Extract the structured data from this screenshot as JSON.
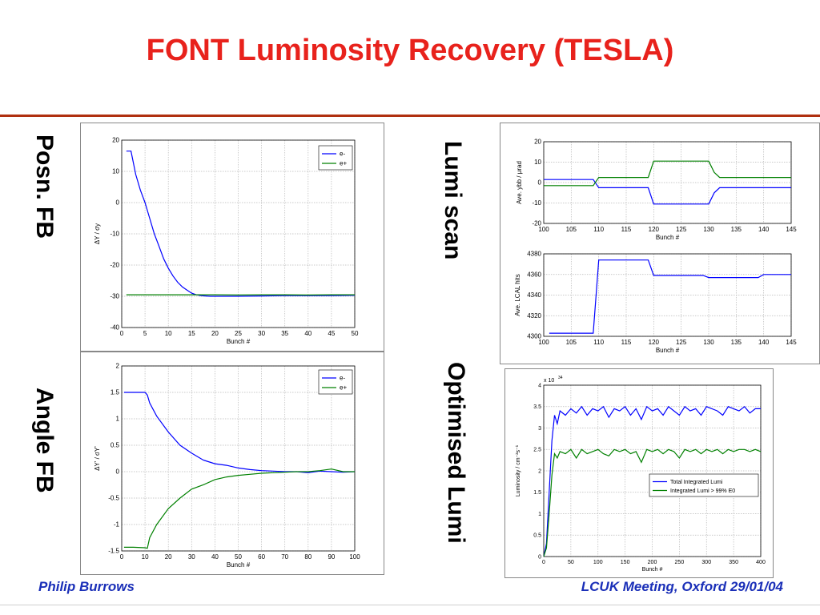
{
  "slide": {
    "title": "FONT Luminosity Recovery (TESLA)",
    "footer_left": "Philip Burrows",
    "footer_right": "LCUK Meeting, Oxford 29/01/04",
    "labels": {
      "posn_fb": "Posn. FB",
      "angle_fb": "Angle FB",
      "lumi_scan": "Lumi scan",
      "optimised_lumi": "Optimised Lumi"
    },
    "colors": {
      "title": "#e8221c",
      "footer": "#1a2fb8",
      "series_blue": "#0000ff",
      "series_green": "#008000"
    }
  },
  "chart_data": [
    {
      "id": "posn",
      "type": "line",
      "xlabel": "Bunch #",
      "ylabel": "ΔY / σy",
      "xlim": [
        0,
        50
      ],
      "ylim": [
        -40,
        20
      ],
      "xticks": [
        0,
        5,
        10,
        15,
        20,
        25,
        30,
        35,
        40,
        45,
        50
      ],
      "yticks": [
        20,
        10,
        0,
        -10,
        -20,
        -30,
        -40
      ],
      "grid": true,
      "legend": "top-right",
      "series": [
        {
          "name": "e-",
          "color": "#0000ff",
          "x": [
            1,
            2,
            3,
            4,
            5,
            6,
            7,
            8,
            9,
            10,
            11,
            12,
            13,
            14,
            15,
            16,
            17,
            18,
            19,
            20,
            22,
            25,
            30,
            35,
            40,
            45,
            50
          ],
          "y": [
            16.5,
            16.5,
            9,
            4,
            0,
            -5,
            -10,
            -14,
            -18,
            -21,
            -23.5,
            -25.5,
            -27,
            -28,
            -29,
            -29.5,
            -29.8,
            -29.9,
            -30,
            -30,
            -30,
            -30,
            -29.9,
            -29.8,
            -29.8,
            -29.8,
            -29.7
          ]
        },
        {
          "name": "e+",
          "color": "#008000",
          "x": [
            1,
            5,
            10,
            15,
            20,
            25,
            30,
            35,
            40,
            45,
            50
          ],
          "y": [
            -29.5,
            -29.5,
            -29.5,
            -29.5,
            -29.5,
            -29.6,
            -29.5,
            -29.5,
            -29.6,
            -29.5,
            -29.5
          ]
        }
      ]
    },
    {
      "id": "angle",
      "type": "line",
      "xlabel": "Bunch #",
      "ylabel": "ΔY' / σY'",
      "xlim": [
        0,
        100
      ],
      "ylim": [
        -1.5,
        2
      ],
      "xticks": [
        0,
        10,
        20,
        30,
        40,
        50,
        60,
        70,
        80,
        90,
        100
      ],
      "yticks": [
        2,
        1.5,
        1,
        0.5,
        0,
        -0.5,
        -1,
        -1.5
      ],
      "grid": true,
      "legend": "top-right",
      "series": [
        {
          "name": "e-",
          "color": "#0000ff",
          "x": [
            1,
            5,
            10,
            11,
            12,
            15,
            20,
            25,
            30,
            35,
            40,
            45,
            50,
            55,
            60,
            65,
            70,
            75,
            80,
            85,
            90,
            95,
            100
          ],
          "y": [
            1.5,
            1.5,
            1.5,
            1.45,
            1.3,
            1.05,
            0.75,
            0.5,
            0.35,
            0.22,
            0.15,
            0.12,
            0.07,
            0.04,
            0.02,
            0.01,
            0.0,
            0.0,
            -0.02,
            0.01,
            0.0,
            -0.01,
            0.0
          ]
        },
        {
          "name": "e+",
          "color": "#008000",
          "x": [
            1,
            5,
            10,
            11,
            12,
            15,
            20,
            25,
            30,
            35,
            40,
            45,
            50,
            55,
            60,
            65,
            70,
            75,
            80,
            85,
            90,
            95,
            100
          ],
          "y": [
            -1.43,
            -1.43,
            -1.44,
            -1.45,
            -1.25,
            -1.0,
            -0.7,
            -0.5,
            -0.33,
            -0.25,
            -0.15,
            -0.1,
            -0.07,
            -0.05,
            -0.03,
            -0.02,
            -0.01,
            0.0,
            0.0,
            0.02,
            0.05,
            0.0,
            0.0
          ]
        }
      ]
    },
    {
      "id": "lumiscan_angle",
      "type": "line",
      "xlabel": "Bunch #",
      "ylabel": "Ave. ybb / μrad",
      "xlim": [
        100,
        145
      ],
      "ylim": [
        -20,
        20
      ],
      "xticks": [
        100,
        105,
        110,
        115,
        120,
        125,
        130,
        135,
        140,
        145
      ],
      "yticks": [
        20,
        10,
        0,
        -10,
        -20
      ],
      "grid": true,
      "series": [
        {
          "name": "",
          "color": "#0000ff",
          "x": [
            100,
            109,
            110,
            119,
            120,
            130,
            131,
            132,
            145
          ],
          "y": [
            1.5,
            1.5,
            -2.5,
            -2.5,
            -10.5,
            -10.5,
            -5,
            -2.5,
            -2.5
          ]
        },
        {
          "name": "",
          "color": "#008000",
          "x": [
            100,
            109,
            110,
            119,
            120,
            130,
            131,
            132,
            145
          ],
          "y": [
            -1.5,
            -1.5,
            2.5,
            2.5,
            10.5,
            10.5,
            5,
            2.5,
            2.5
          ]
        }
      ]
    },
    {
      "id": "lumiscan_lcal",
      "type": "line",
      "xlabel": "Bunch #",
      "ylabel": "Ave. LCAL hits",
      "xlim": [
        100,
        145
      ],
      "ylim": [
        4300,
        4380
      ],
      "xticks": [
        100,
        105,
        110,
        115,
        120,
        125,
        130,
        135,
        140,
        145
      ],
      "yticks": [
        4380,
        4360,
        4340,
        4320,
        4300
      ],
      "grid": true,
      "series": [
        {
          "name": "",
          "color": "#0000ff",
          "x": [
            101,
            109,
            110,
            119,
            120,
            129,
            130,
            139,
            140,
            145
          ],
          "y": [
            4303,
            4303,
            4374,
            4374,
            4359,
            4359,
            4357,
            4357,
            4360,
            4360
          ]
        }
      ]
    },
    {
      "id": "optimised",
      "type": "line",
      "xlabel": "Bunch #",
      "ylabel": "Luminosity / cm⁻²s⁻¹",
      "scale_label": "x 10",
      "scale_exponent": "34",
      "xlim": [
        0,
        400
      ],
      "ylim": [
        0,
        4
      ],
      "xticks": [
        0,
        50,
        100,
        150,
        200,
        250,
        300,
        350,
        400
      ],
      "yticks": [
        4,
        3.5,
        3,
        2.5,
        2,
        1.5,
        1,
        0.5,
        0
      ],
      "grid": true,
      "legend": "middle-right",
      "series": [
        {
          "name": "Total Integrated Lumi",
          "color": "#0000ff",
          "x": [
            0,
            5,
            10,
            15,
            20,
            25,
            30,
            40,
            50,
            60,
            70,
            80,
            90,
            100,
            110,
            120,
            130,
            140,
            150,
            160,
            170,
            180,
            190,
            200,
            210,
            220,
            230,
            240,
            250,
            260,
            270,
            280,
            290,
            300,
            310,
            320,
            330,
            340,
            350,
            360,
            370,
            380,
            390,
            400
          ],
          "y": [
            0,
            0.3,
            1.5,
            2.7,
            3.3,
            3.1,
            3.4,
            3.3,
            3.45,
            3.35,
            3.5,
            3.3,
            3.45,
            3.4,
            3.5,
            3.25,
            3.45,
            3.4,
            3.5,
            3.3,
            3.45,
            3.2,
            3.5,
            3.4,
            3.45,
            3.3,
            3.5,
            3.4,
            3.3,
            3.5,
            3.4,
            3.45,
            3.3,
            3.5,
            3.45,
            3.4,
            3.3,
            3.5,
            3.45,
            3.4,
            3.5,
            3.35,
            3.45,
            3.45
          ]
        },
        {
          "name": "Integrated Lumi > 99% E0",
          "color": "#008000",
          "x": [
            0,
            5,
            10,
            15,
            20,
            25,
            30,
            40,
            50,
            60,
            70,
            80,
            90,
            100,
            110,
            120,
            130,
            140,
            150,
            160,
            170,
            180,
            190,
            200,
            210,
            220,
            230,
            240,
            250,
            260,
            270,
            280,
            290,
            300,
            310,
            320,
            330,
            340,
            350,
            360,
            370,
            380,
            390,
            400
          ],
          "y": [
            0,
            0.2,
            1.0,
            1.9,
            2.4,
            2.3,
            2.45,
            2.4,
            2.5,
            2.3,
            2.5,
            2.4,
            2.45,
            2.5,
            2.4,
            2.35,
            2.5,
            2.45,
            2.5,
            2.4,
            2.45,
            2.2,
            2.5,
            2.45,
            2.5,
            2.4,
            2.5,
            2.45,
            2.3,
            2.5,
            2.45,
            2.5,
            2.4,
            2.5,
            2.45,
            2.5,
            2.4,
            2.5,
            2.45,
            2.5,
            2.5,
            2.45,
            2.5,
            2.45
          ]
        }
      ]
    }
  ]
}
